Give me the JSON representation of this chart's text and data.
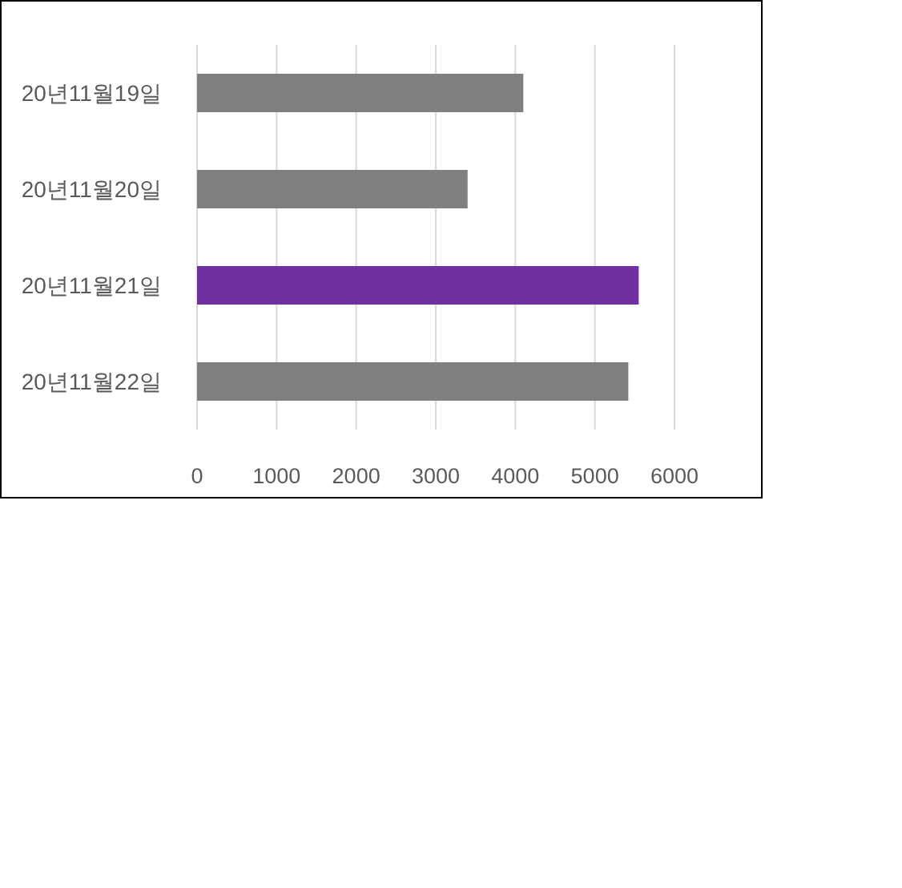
{
  "chart_data": {
    "type": "bar",
    "orientation": "horizontal",
    "categories": [
      "20년11월19일",
      "20년11월20일",
      "20년11월21일",
      "20년11월22일"
    ],
    "values": [
      4100,
      3400,
      5550,
      5420
    ],
    "colors": [
      "#7f7f7f",
      "#7f7f7f",
      "#7030a0",
      "#7f7f7f"
    ],
    "xlim": [
      0,
      6000
    ],
    "xticks": [
      0,
      1000,
      2000,
      3000,
      4000,
      5000,
      6000
    ],
    "grid": "x"
  }
}
